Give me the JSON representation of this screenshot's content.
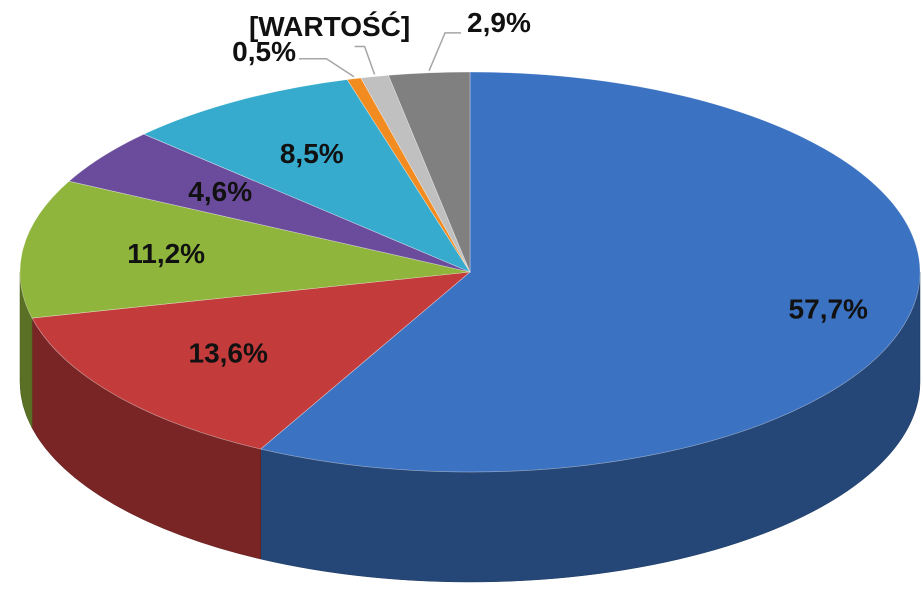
{
  "chart_data": {
    "type": "pie",
    "three_d": true,
    "values": [
      57.7,
      13.6,
      11.2,
      4.6,
      8.5,
      0.5,
      1.0,
      2.9
    ],
    "value_labels": [
      "57,7%",
      "13,6%",
      "11,2%",
      "4,6%",
      "8,5%",
      "0,5%",
      "[WARTOŚĆ]",
      "2,9%"
    ],
    "colors": [
      "#3c72c2",
      "#c33b3b",
      "#8fb53c",
      "#6b4c9c",
      "#36abcd",
      "#f28b20",
      "#c0c0c0",
      "#808080"
    ]
  }
}
